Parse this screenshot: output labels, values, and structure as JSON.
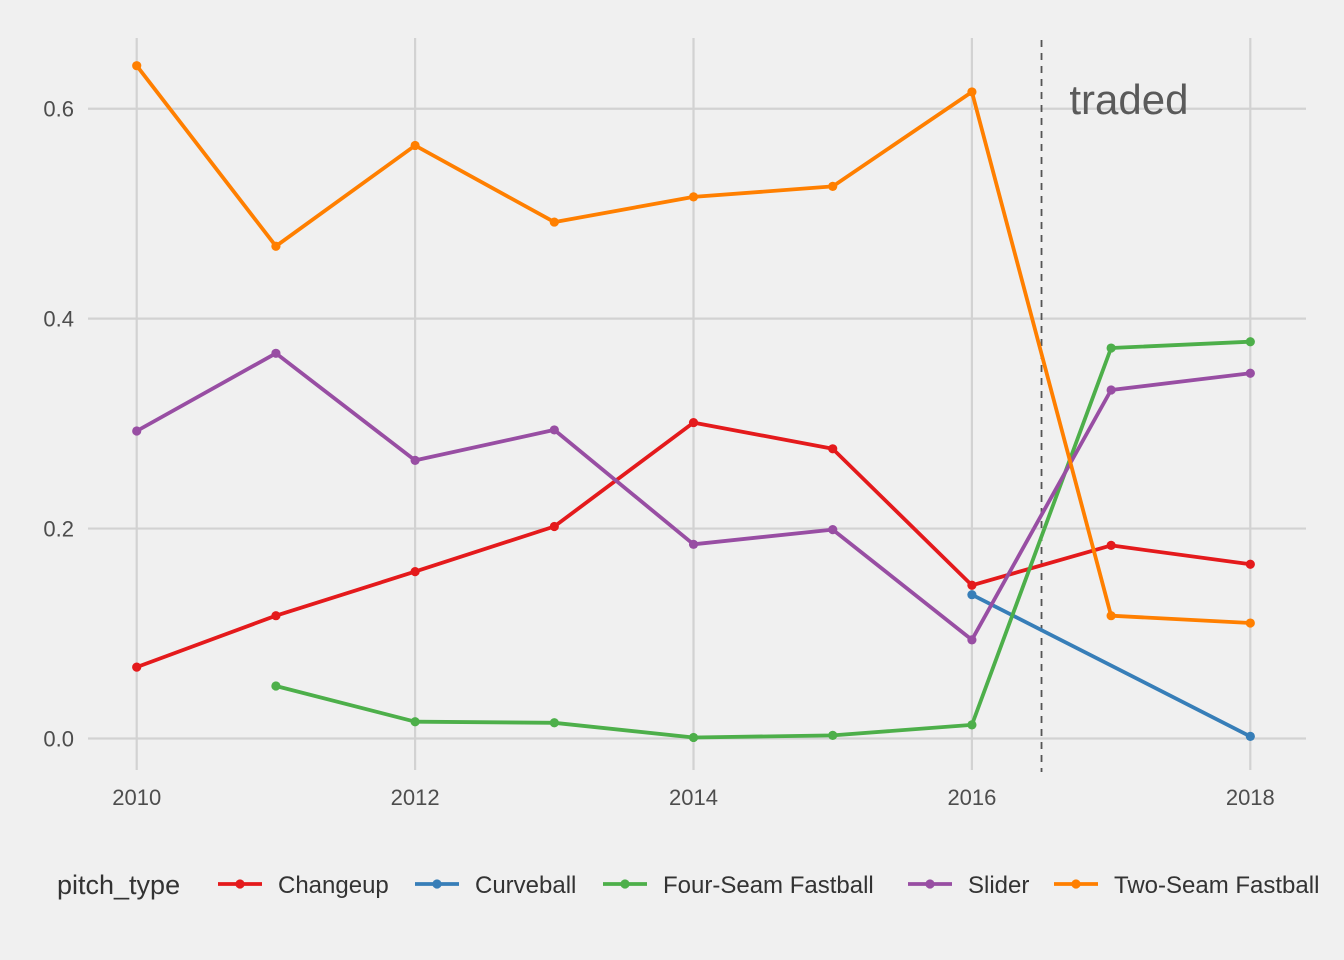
{
  "chart_data": {
    "type": "line",
    "title": "",
    "xlabel": "",
    "ylabel": "",
    "xlim": [
      2009.65,
      2018.4
    ],
    "ylim": [
      -0.03,
      0.675
    ],
    "x_ticks": [
      2010,
      2012,
      2014,
      2016,
      2018
    ],
    "x_tick_labels": [
      "2010",
      "2012",
      "2014",
      "2016",
      "2018"
    ],
    "y_ticks": [
      0.0,
      0.2,
      0.4,
      0.6
    ],
    "y_tick_labels": [
      "0.0",
      "0.2",
      "0.4",
      "0.6"
    ],
    "grid": true,
    "legend": {
      "position": "bottom",
      "title": "pitch_type"
    },
    "annotation": {
      "text": "traded",
      "x": 2016.7,
      "y": 0.595
    },
    "vline": {
      "x": 2016.5,
      "style": "dashed",
      "color": "#555555"
    },
    "series": [
      {
        "name": "Changeup",
        "color": "#e41a1c",
        "points": [
          [
            2010,
            0.068
          ],
          [
            2011,
            0.117
          ],
          [
            2012,
            0.159
          ],
          [
            2013,
            0.202
          ],
          [
            2014,
            0.301
          ],
          [
            2015,
            0.276
          ],
          [
            2016,
            0.146
          ],
          [
            2017,
            0.184
          ],
          [
            2018,
            0.166
          ]
        ]
      },
      {
        "name": "Curveball",
        "color": "#377eb8",
        "points": [
          [
            2016,
            0.137
          ],
          [
            2018,
            0.002
          ]
        ]
      },
      {
        "name": "Four-Seam Fastball",
        "color": "#4daf4a",
        "points": [
          [
            2011,
            0.05
          ],
          [
            2012,
            0.016
          ],
          [
            2013,
            0.015
          ],
          [
            2014,
            0.001
          ],
          [
            2015,
            0.003
          ],
          [
            2016,
            0.013
          ],
          [
            2017,
            0.372
          ],
          [
            2018,
            0.378
          ]
        ]
      },
      {
        "name": "Slider",
        "color": "#984ea3",
        "points": [
          [
            2010,
            0.293
          ],
          [
            2011,
            0.367
          ],
          [
            2012,
            0.265
          ],
          [
            2013,
            0.294
          ],
          [
            2014,
            0.185
          ],
          [
            2015,
            0.199
          ],
          [
            2016,
            0.094
          ],
          [
            2017,
            0.332
          ],
          [
            2018,
            0.348
          ]
        ]
      },
      {
        "name": "Two-Seam Fastball",
        "color": "#ff7f00",
        "points": [
          [
            2010,
            0.641
          ],
          [
            2011,
            0.469
          ],
          [
            2012,
            0.565
          ],
          [
            2013,
            0.492
          ],
          [
            2014,
            0.516
          ],
          [
            2015,
            0.526
          ],
          [
            2016,
            0.616
          ],
          [
            2017,
            0.117
          ],
          [
            2018,
            0.11
          ]
        ]
      }
    ]
  }
}
